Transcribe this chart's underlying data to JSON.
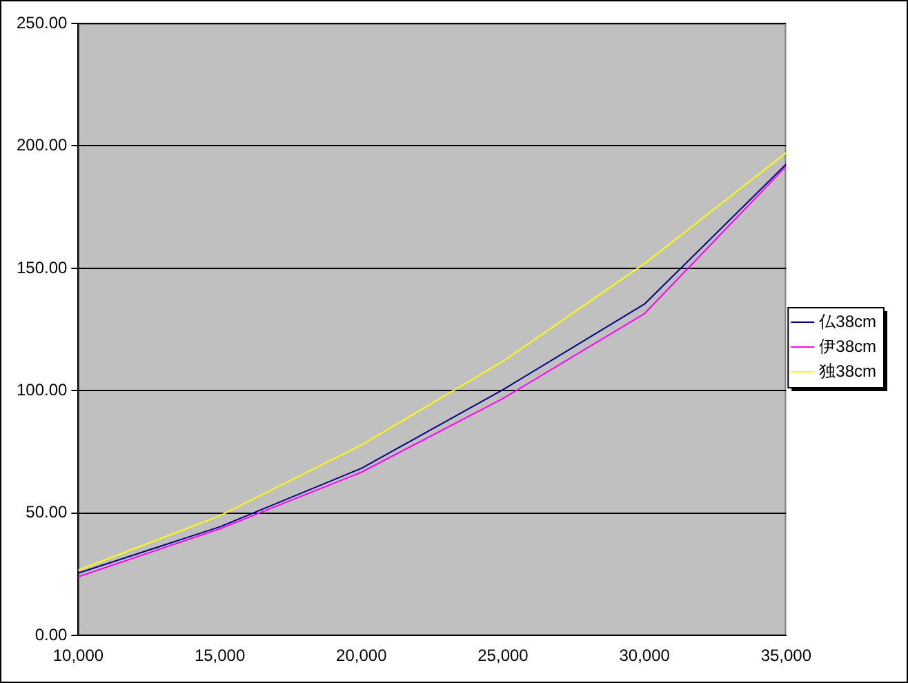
{
  "chart_data": {
    "type": "line",
    "x": [
      10000,
      15000,
      20000,
      25000,
      30000,
      35000
    ],
    "series": [
      {
        "name": "仏38cm",
        "color": "#000080",
        "values": [
          25.5,
          44.4,
          68.3,
          100.4,
          135.4,
          192.5
        ]
      },
      {
        "name": "伊38cm",
        "color": "#ff00ff",
        "values": [
          24.0,
          43.6,
          66.7,
          96.8,
          131.5,
          191.7
        ]
      },
      {
        "name": "独38cm",
        "color": "#ffff00",
        "values": [
          26.7,
          48.9,
          77.8,
          112.0,
          151.9,
          197.2
        ]
      }
    ],
    "xlim": [
      10000,
      35000
    ],
    "xticks": [
      {
        "value": 10000,
        "label": "10,000"
      },
      {
        "value": 15000,
        "label": "15,000"
      },
      {
        "value": 20000,
        "label": "20,000"
      },
      {
        "value": 25000,
        "label": "25,000"
      },
      {
        "value": 30000,
        "label": "30,000"
      },
      {
        "value": 35000,
        "label": "35,000"
      }
    ],
    "ylim": [
      0,
      250
    ],
    "yticks": [
      {
        "value": 0,
        "label": "0.00"
      },
      {
        "value": 50,
        "label": "50.00"
      },
      {
        "value": 100,
        "label": "100.00"
      },
      {
        "value": 150,
        "label": "150.00"
      },
      {
        "value": 200,
        "label": "200.00"
      },
      {
        "value": 250,
        "label": "250.00"
      }
    ],
    "grid": "y",
    "legend": "right",
    "marker": "none",
    "line_style": "solid"
  }
}
